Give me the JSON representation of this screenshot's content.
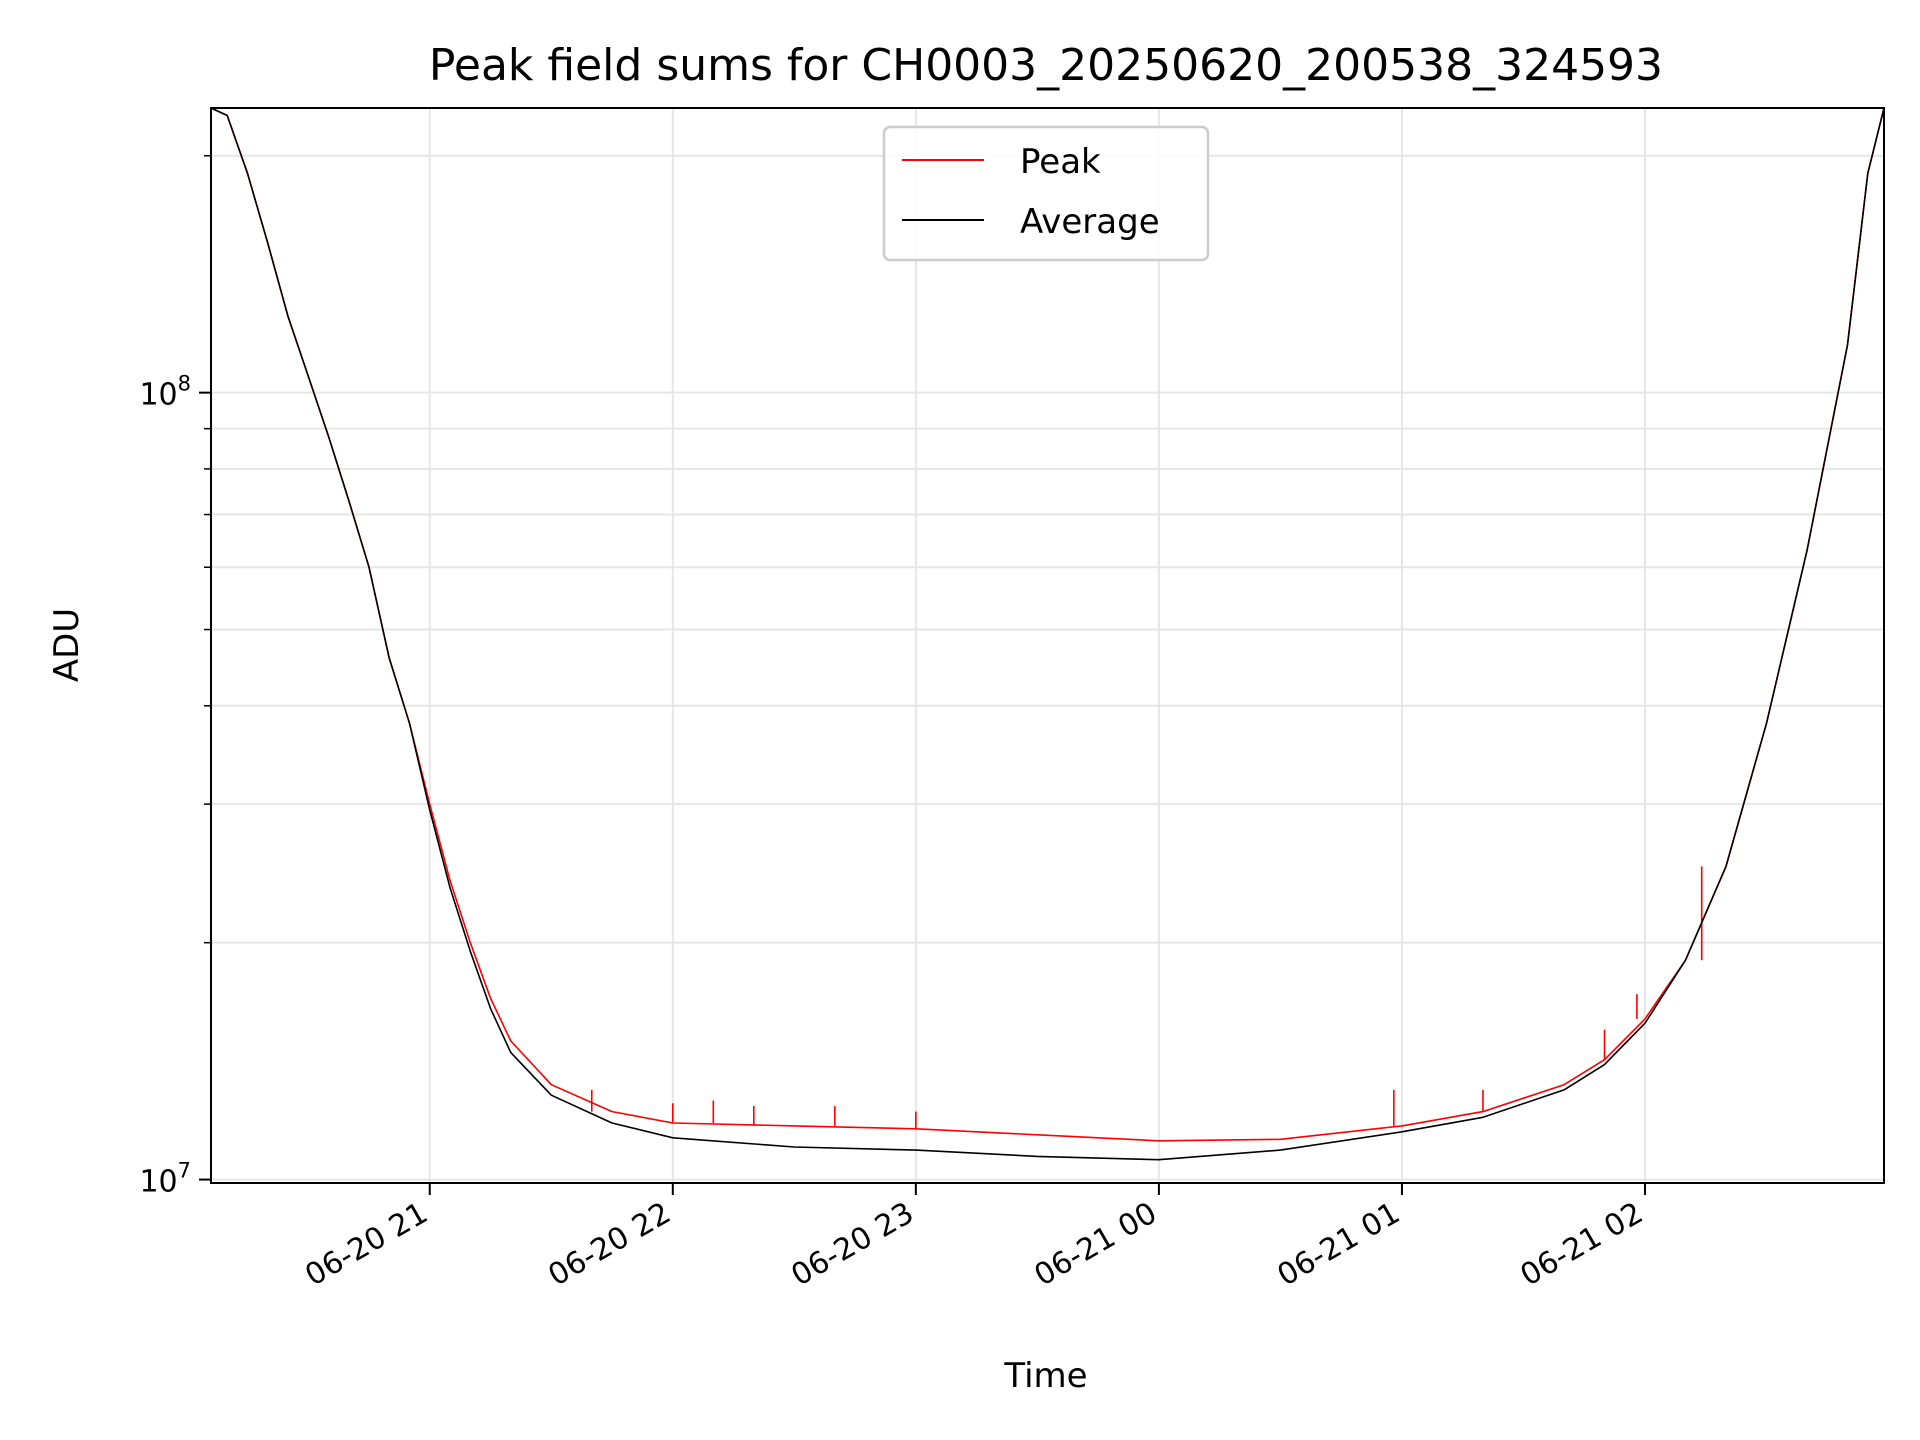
{
  "chart_data": {
    "type": "line",
    "title": "Peak field sums for CH0003_20250620_200538_324593",
    "xlabel": "Time",
    "ylabel": "ADU",
    "xscale": "time",
    "yscale": "log",
    "xlim": [
      "2025-06-20 20:06",
      "2025-06-21 02:59"
    ],
    "ylim": [
      9900000,
      230000000
    ],
    "x_ticks": [
      {
        "value": "2025-06-20 21:00",
        "label": "06-20 21"
      },
      {
        "value": "2025-06-20 22:00",
        "label": "06-20 22"
      },
      {
        "value": "2025-06-20 23:00",
        "label": "06-20 23"
      },
      {
        "value": "2025-06-21 00:00",
        "label": "06-21 00"
      },
      {
        "value": "2025-06-21 01:00",
        "label": "06-21 01"
      },
      {
        "value": "2025-06-21 02:00",
        "label": "06-21 02"
      }
    ],
    "y_ticks": [
      {
        "value": 10000000,
        "base": "10",
        "exp": "7"
      },
      {
        "value": 100000000,
        "base": "10",
        "exp": "8"
      }
    ],
    "grid": true,
    "legend": {
      "position": "top-center"
    },
    "series": [
      {
        "name": "Peak",
        "color": "#ff0000",
        "points": [
          [
            "2025-06-20 20:06",
            230000000
          ],
          [
            "2025-06-20 20:10",
            225000000
          ],
          [
            "2025-06-20 20:15",
            190000000
          ],
          [
            "2025-06-20 20:20",
            155000000
          ],
          [
            "2025-06-20 20:25",
            125000000
          ],
          [
            "2025-06-20 20:30",
            105000000
          ],
          [
            "2025-06-20 20:35",
            88000000
          ],
          [
            "2025-06-20 20:40",
            73000000
          ],
          [
            "2025-06-20 20:45",
            60000000
          ],
          [
            "2025-06-20 20:50",
            46000000
          ],
          [
            "2025-06-20 20:55",
            38000000
          ],
          [
            "2025-06-20 21:00",
            30000000
          ],
          [
            "2025-06-20 21:05",
            24000000
          ],
          [
            "2025-06-20 21:10",
            20000000
          ],
          [
            "2025-06-20 21:15",
            17000000
          ],
          [
            "2025-06-20 21:20",
            15000000
          ],
          [
            "2025-06-20 21:30",
            13200000
          ],
          [
            "2025-06-20 21:45",
            12200000
          ],
          [
            "2025-06-20 22:00",
            11800000
          ],
          [
            "2025-06-20 22:30",
            11700000
          ],
          [
            "2025-06-20 23:00",
            11600000
          ],
          [
            "2025-06-20 23:30",
            11400000
          ],
          [
            "2025-06-21 00:00",
            11200000
          ],
          [
            "2025-06-21 00:30",
            11250000
          ],
          [
            "2025-06-21 01:00",
            11700000
          ],
          [
            "2025-06-21 01:20",
            12200000
          ],
          [
            "2025-06-21 01:40",
            13200000
          ],
          [
            "2025-06-21 01:50",
            14200000
          ],
          [
            "2025-06-21 02:00",
            16000000
          ],
          [
            "2025-06-21 02:10",
            19000000
          ],
          [
            "2025-06-21 02:20",
            25000000
          ],
          [
            "2025-06-21 02:30",
            38000000
          ],
          [
            "2025-06-21 02:40",
            63000000
          ],
          [
            "2025-06-21 02:50",
            115000000
          ],
          [
            "2025-06-21 02:55",
            190000000
          ],
          [
            "2025-06-21 02:59",
            230000000
          ]
        ],
        "spikes": [
          [
            "2025-06-20 21:40",
            13000000
          ],
          [
            "2025-06-20 22:00",
            12500000
          ],
          [
            "2025-06-20 22:10",
            12600000
          ],
          [
            "2025-06-20 22:20",
            12400000
          ],
          [
            "2025-06-20 22:40",
            12400000
          ],
          [
            "2025-06-20 23:00",
            12200000
          ],
          [
            "2025-06-21 00:58",
            13000000
          ],
          [
            "2025-06-21 01:20",
            13000000
          ],
          [
            "2025-06-21 01:50",
            15500000
          ],
          [
            "2025-06-21 01:58",
            17200000
          ],
          [
            "2025-06-21 02:14",
            25000000
          ]
        ]
      },
      {
        "name": "Average",
        "color": "#000000",
        "points": [
          [
            "2025-06-20 20:06",
            230000000
          ],
          [
            "2025-06-20 20:10",
            225000000
          ],
          [
            "2025-06-20 20:15",
            190000000
          ],
          [
            "2025-06-20 20:20",
            155000000
          ],
          [
            "2025-06-20 20:25",
            125000000
          ],
          [
            "2025-06-20 20:30",
            105000000
          ],
          [
            "2025-06-20 20:35",
            88000000
          ],
          [
            "2025-06-20 20:40",
            73000000
          ],
          [
            "2025-06-20 20:45",
            60000000
          ],
          [
            "2025-06-20 20:50",
            46000000
          ],
          [
            "2025-06-20 20:55",
            38000000
          ],
          [
            "2025-06-20 21:00",
            29500000
          ],
          [
            "2025-06-20 21:05",
            23500000
          ],
          [
            "2025-06-20 21:10",
            19500000
          ],
          [
            "2025-06-20 21:15",
            16500000
          ],
          [
            "2025-06-20 21:20",
            14500000
          ],
          [
            "2025-06-20 21:30",
            12800000
          ],
          [
            "2025-06-20 21:45",
            11800000
          ],
          [
            "2025-06-20 22:00",
            11300000
          ],
          [
            "2025-06-20 22:30",
            11000000
          ],
          [
            "2025-06-20 23:00",
            10900000
          ],
          [
            "2025-06-20 23:30",
            10700000
          ],
          [
            "2025-06-21 00:00",
            10600000
          ],
          [
            "2025-06-21 00:30",
            10900000
          ],
          [
            "2025-06-21 01:00",
            11500000
          ],
          [
            "2025-06-21 01:20",
            12000000
          ],
          [
            "2025-06-21 01:40",
            13000000
          ],
          [
            "2025-06-21 01:50",
            14000000
          ],
          [
            "2025-06-21 02:00",
            15800000
          ],
          [
            "2025-06-21 02:10",
            19000000
          ],
          [
            "2025-06-21 02:20",
            25000000
          ],
          [
            "2025-06-21 02:30",
            38000000
          ],
          [
            "2025-06-21 02:40",
            63000000
          ],
          [
            "2025-06-21 02:50",
            115000000
          ],
          [
            "2025-06-21 02:55",
            190000000
          ],
          [
            "2025-06-21 02:59",
            230000000
          ]
        ]
      }
    ]
  }
}
